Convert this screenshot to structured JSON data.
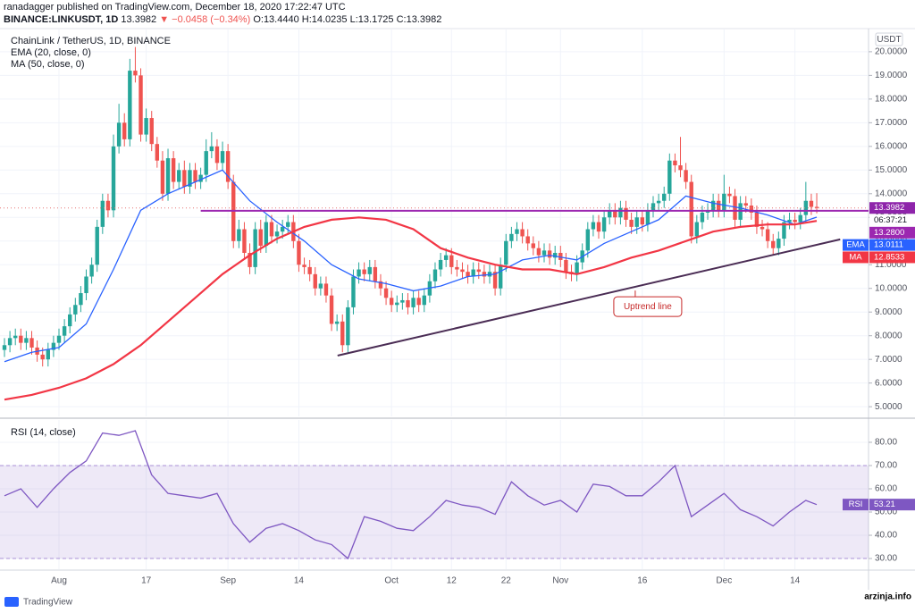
{
  "header": {
    "published": "ranadagger published on TradingView.com, December 18, 2020 17:22:47 UTC",
    "symbol": "BINANCE:LINKUSDT, 1D",
    "change": "▼ −0.0458 (−0.34%)",
    "ohlc_labels": [
      "O:",
      "H:",
      "L:",
      "C:"
    ]
  },
  "footer": {
    "brand": "TradingView",
    "watermark": "arzinja.info"
  },
  "chart_data": [
    {
      "type": "candlestick",
      "title": "ChainLink / TetherUS, 1D, BINANCE",
      "unit": "USDT",
      "countdown": "06:37:21",
      "up_color": "#26a69a",
      "down_color": "#ef5350",
      "xlim": [
        -0.82,
        158.5
      ],
      "ylim": [
        4.59,
        20.94
      ],
      "xticks": [
        {
          "value": 10,
          "label": "Aug"
        },
        {
          "value": 26,
          "label": "17"
        },
        {
          "value": 41,
          "label": "Sep"
        },
        {
          "value": 54,
          "label": "14"
        },
        {
          "value": 71,
          "label": "Oct"
        },
        {
          "value": 82,
          "label": "12"
        },
        {
          "value": 92,
          "label": "22"
        },
        {
          "value": 102,
          "label": "Nov"
        },
        {
          "value": 117,
          "label": "16"
        },
        {
          "value": 132,
          "label": "Dec"
        },
        {
          "value": 145,
          "label": "14"
        }
      ],
      "yticks": [
        {
          "value": 5,
          "label": "5.0000"
        },
        {
          "value": 6,
          "label": "6.0000"
        },
        {
          "value": 7,
          "label": "7.0000"
        },
        {
          "value": 8,
          "label": "8.0000"
        },
        {
          "value": 9,
          "label": "9.0000"
        },
        {
          "value": 10,
          "label": "10.0000"
        },
        {
          "value": 11,
          "label": "11.0000"
        },
        {
          "value": 12,
          "label": "12.0000"
        },
        {
          "value": 13,
          "label": "13.0000"
        },
        {
          "value": 14,
          "label": "14.0000"
        },
        {
          "value": 15,
          "label": "15.0000"
        },
        {
          "value": 16,
          "label": "16.0000"
        },
        {
          "value": 17,
          "label": "17.0000"
        },
        {
          "value": 18,
          "label": "18.0000"
        },
        {
          "value": 19,
          "label": "19.0000"
        },
        {
          "value": 20,
          "label": "20.0000"
        }
      ],
      "open": [
        7.4,
        7.6,
        7.9,
        8.0,
        7.7,
        7.9,
        7.5,
        7.2,
        7.0,
        7.4,
        7.7,
        8.0,
        8.4,
        8.9,
        9.3,
        9.8,
        10.5,
        11.0,
        12.6,
        13.7,
        13.3,
        16.0,
        17.0,
        16.3,
        19.2,
        19.0,
        16.5,
        17.2,
        16.1,
        15.4,
        14.0,
        15.5,
        14.5,
        15.0,
        14.3,
        15.0,
        14.5,
        14.8,
        15.8,
        16.0,
        15.3,
        15.8,
        14.5,
        12.0,
        12.5,
        11.5,
        10.9,
        12.5,
        11.8,
        12.8,
        12.2,
        12.4,
        12.6,
        12.8,
        12.0,
        11.0,
        10.9,
        10.6,
        10.0,
        10.2,
        9.7,
        8.5,
        8.6,
        7.6,
        9.2,
        10.5,
        10.8,
        10.6,
        10.9,
        10.3,
        10.0,
        9.6,
        9.3,
        9.4,
        9.5,
        9.2,
        9.6,
        9.3,
        9.7,
        10.3,
        10.8,
        11.2,
        11.4,
        10.9,
        10.8,
        10.7,
        10.5,
        10.8,
        10.7,
        10.5,
        10.7,
        10.0,
        11.0,
        12.0,
        12.3,
        12.5,
        12.2,
        11.9,
        11.7,
        11.4,
        11.6,
        11.3,
        11.5,
        11.2,
        10.7,
        10.6,
        11.1,
        11.6,
        12.5,
        12.8,
        12.4,
        13.0,
        13.3,
        13.0,
        13.4,
        12.9,
        12.6,
        13.0,
        12.7,
        13.3,
        13.6,
        13.7,
        14.0,
        15.4,
        15.2,
        15.0,
        14.5,
        12.2,
        12.8,
        13.2,
        13.3,
        13.7,
        13.3,
        14.0,
        13.9,
        12.9,
        13.6,
        13.5,
        13.2,
        12.6,
        12.5,
        12.0,
        11.7,
        12.1,
        12.8,
        12.9,
        12.8,
        13.1,
        13.7,
        13.444
      ],
      "high": [
        7.9,
        8.2,
        8.3,
        8.3,
        8.2,
        8.2,
        7.8,
        7.5,
        7.7,
        8.0,
        8.3,
        8.7,
        9.2,
        9.6,
        10.1,
        10.8,
        11.3,
        12.9,
        14.0,
        14.0,
        16.5,
        17.8,
        17.4,
        19.7,
        20.2,
        19.3,
        17.6,
        17.5,
        16.4,
        15.8,
        15.9,
        15.8,
        15.3,
        15.4,
        15.3,
        15.3,
        15.1,
        16.3,
        16.6,
        16.3,
        16.2,
        16.1,
        14.8,
        12.9,
        12.8,
        11.9,
        12.8,
        12.9,
        13.1,
        13.1,
        12.7,
        12.9,
        13.1,
        13.1,
        12.3,
        11.3,
        11.2,
        10.9,
        10.5,
        10.5,
        10.0,
        8.9,
        8.9,
        9.5,
        10.8,
        11.1,
        11.1,
        11.2,
        11.2,
        10.6,
        10.3,
        9.9,
        9.7,
        9.8,
        9.8,
        9.9,
        9.9,
        10.0,
        10.6,
        11.1,
        11.5,
        11.7,
        11.7,
        11.2,
        11.1,
        11.0,
        11.1,
        11.1,
        11.0,
        11.0,
        11.0,
        11.3,
        12.3,
        12.6,
        12.8,
        12.8,
        12.5,
        12.2,
        12.0,
        11.9,
        11.9,
        11.8,
        11.8,
        11.5,
        11.0,
        11.4,
        11.9,
        12.8,
        13.1,
        13.1,
        13.3,
        13.6,
        13.6,
        13.7,
        13.7,
        13.2,
        13.3,
        13.3,
        13.6,
        13.9,
        14.0,
        14.3,
        15.7,
        15.7,
        16.4,
        15.3,
        14.8,
        13.1,
        13.5,
        13.6,
        14.0,
        14.0,
        14.8,
        14.3,
        14.2,
        13.9,
        13.9,
        13.8,
        13.5,
        12.9,
        12.8,
        12.3,
        12.4,
        13.1,
        13.2,
        13.2,
        13.4,
        14.5,
        14.0,
        14.0235
      ],
      "low": [
        7.1,
        7.3,
        7.6,
        7.4,
        7.4,
        7.2,
        6.9,
        6.7,
        6.7,
        7.1,
        7.4,
        7.7,
        8.1,
        8.6,
        9.0,
        9.5,
        10.2,
        10.7,
        12.3,
        13.0,
        13.0,
        15.7,
        16.0,
        16.0,
        18.7,
        16.2,
        16.2,
        15.8,
        15.1,
        13.7,
        13.7,
        14.2,
        14.2,
        14.0,
        14.0,
        14.2,
        14.2,
        14.5,
        15.5,
        15.0,
        15.0,
        14.2,
        11.7,
        11.7,
        11.2,
        10.6,
        10.6,
        11.5,
        11.5,
        11.9,
        11.9,
        12.1,
        12.3,
        11.7,
        10.7,
        10.6,
        10.3,
        9.7,
        9.7,
        9.4,
        8.2,
        8.2,
        7.3,
        7.3,
        8.9,
        10.2,
        10.3,
        10.3,
        10.0,
        9.7,
        9.3,
        9.0,
        9.0,
        9.1,
        8.9,
        8.9,
        9.0,
        9.0,
        9.4,
        10.0,
        10.5,
        10.9,
        10.6,
        10.5,
        10.4,
        10.2,
        10.2,
        10.4,
        10.2,
        10.2,
        9.7,
        9.7,
        10.7,
        11.7,
        12.0,
        11.9,
        11.6,
        11.4,
        11.1,
        11.1,
        11.0,
        11.0,
        10.9,
        10.4,
        10.3,
        10.3,
        10.8,
        11.3,
        12.2,
        12.1,
        12.1,
        12.7,
        12.7,
        12.7,
        12.6,
        12.3,
        12.3,
        12.4,
        12.4,
        13.0,
        13.3,
        13.4,
        13.7,
        14.9,
        14.7,
        14.2,
        11.9,
        11.9,
        12.5,
        12.9,
        13.0,
        13.0,
        13.0,
        13.6,
        12.6,
        12.6,
        13.2,
        12.9,
        12.3,
        12.2,
        11.7,
        11.4,
        11.4,
        11.8,
        12.5,
        12.5,
        12.5,
        12.8,
        13.1,
        13.1725
      ],
      "close": [
        7.6,
        7.9,
        8.0,
        7.7,
        7.9,
        7.5,
        7.2,
        7.0,
        7.4,
        7.7,
        8.0,
        8.4,
        8.9,
        9.3,
        9.8,
        10.5,
        11.0,
        12.6,
        13.7,
        13.3,
        16.0,
        17.0,
        16.3,
        19.2,
        19.0,
        16.5,
        17.2,
        16.1,
        15.4,
        14.0,
        15.5,
        14.5,
        15.0,
        14.3,
        15.0,
        14.5,
        14.8,
        15.8,
        16.0,
        15.3,
        15.8,
        14.5,
        12.0,
        12.5,
        11.5,
        10.9,
        12.5,
        11.8,
        12.8,
        12.2,
        12.4,
        12.6,
        12.8,
        12.0,
        11.0,
        10.9,
        10.6,
        10.0,
        10.2,
        9.7,
        8.5,
        8.6,
        7.6,
        9.2,
        10.5,
        10.8,
        10.6,
        10.9,
        10.3,
        10.0,
        9.6,
        9.3,
        9.4,
        9.5,
        9.2,
        9.6,
        9.3,
        9.7,
        10.3,
        10.8,
        11.2,
        11.4,
        10.9,
        10.8,
        10.7,
        10.5,
        10.8,
        10.7,
        10.5,
        10.7,
        10.0,
        11.0,
        12.0,
        12.3,
        12.5,
        12.2,
        11.9,
        11.7,
        11.4,
        11.6,
        11.3,
        11.5,
        11.2,
        10.7,
        10.6,
        11.1,
        11.6,
        12.5,
        12.8,
        12.4,
        13.0,
        13.3,
        13.0,
        13.4,
        12.9,
        12.6,
        13.0,
        12.7,
        13.3,
        13.6,
        13.7,
        14.0,
        15.4,
        15.2,
        15.0,
        14.5,
        12.2,
        12.8,
        13.2,
        13.3,
        13.7,
        13.3,
        14.0,
        13.9,
        12.9,
        13.6,
        13.5,
        13.2,
        12.6,
        12.5,
        12.0,
        11.7,
        12.1,
        12.8,
        12.9,
        12.8,
        13.1,
        13.7,
        13.444,
        13.3982
      ],
      "value_labels": {
        "open": "13.4440"
      },
      "series": [
        {
          "name": "EMA (20, close, 0)",
          "tag": "EMA",
          "color": "#2962ff",
          "width": 1.3,
          "x": [
            0,
            5,
            10,
            15,
            20,
            25,
            30,
            35,
            40,
            45,
            50,
            55,
            60,
            65,
            70,
            75,
            80,
            85,
            90,
            95,
            100,
            105,
            110,
            115,
            120,
            125,
            130,
            135,
            140,
            145,
            149
          ],
          "values": [
            6.9,
            7.3,
            7.5,
            8.5,
            10.8,
            13.3,
            14.0,
            14.5,
            15.0,
            13.7,
            12.8,
            12.0,
            11.0,
            10.4,
            10.2,
            9.9,
            10.1,
            10.5,
            10.6,
            11.2,
            11.4,
            11.2,
            11.9,
            12.4,
            12.9,
            13.9,
            13.6,
            13.4,
            13.1,
            12.7,
            13.0111
          ]
        },
        {
          "name": "MA (50, close, 0)",
          "tag": "MA",
          "color": "#f23645",
          "width": 2.2,
          "x": [
            0,
            5,
            10,
            15,
            20,
            25,
            30,
            35,
            40,
            45,
            50,
            55,
            60,
            65,
            70,
            75,
            80,
            85,
            90,
            95,
            100,
            105,
            110,
            115,
            120,
            125,
            130,
            135,
            140,
            145,
            149
          ],
          "values": [
            5.3,
            5.5,
            5.8,
            6.2,
            6.8,
            7.6,
            8.6,
            9.6,
            10.6,
            11.4,
            12.1,
            12.6,
            12.9,
            13.0,
            12.9,
            12.5,
            11.7,
            11.3,
            11.0,
            10.8,
            10.8,
            10.6,
            10.9,
            11.3,
            11.6,
            12.0,
            12.4,
            12.6,
            12.7,
            12.7,
            12.8533
          ]
        }
      ],
      "hline": {
        "value": 13.28,
        "label": "13.2800",
        "start": 36,
        "color": "#9c27b0"
      },
      "trendline": {
        "x": [
          61.1,
          153.3
        ],
        "y": [
          7.16,
          12.07
        ],
        "color": "#4a2c54"
      },
      "annotations": [
        {
          "text": "Uptrend line",
          "x": 118,
          "y": 9.23,
          "color": "#c62828"
        }
      ]
    },
    {
      "type": "line",
      "title": "RSI (14, close)",
      "tag": "RSI",
      "color": "#7e57c2",
      "ylim": [
        25.4,
        89.6
      ],
      "band": [
        30,
        70
      ],
      "yticks": [
        {
          "value": 30,
          "label": "30.00"
        },
        {
          "value": 40,
          "label": "40.00"
        },
        {
          "value": 50,
          "label": "50.00"
        },
        {
          "value": 60,
          "label": "60.00"
        },
        {
          "value": 70,
          "label": "70.00"
        },
        {
          "value": 80,
          "label": "80.00"
        }
      ],
      "x": [
        0,
        3,
        6,
        9,
        12,
        15,
        18,
        21,
        24,
        27,
        30,
        33,
        36,
        39,
        42,
        45,
        48,
        51,
        54,
        57,
        60,
        63,
        66,
        69,
        72,
        75,
        78,
        81,
        84,
        87,
        90,
        93,
        96,
        99,
        102,
        105,
        108,
        111,
        114,
        117,
        120,
        123,
        126,
        129,
        132,
        135,
        138,
        141,
        144,
        147,
        149
      ],
      "values": [
        57,
        60,
        52,
        60,
        67,
        72,
        84,
        83,
        85,
        66,
        58,
        57,
        56,
        58,
        45,
        37,
        43,
        45,
        42,
        38,
        36,
        30,
        48,
        46,
        43,
        42,
        48,
        55,
        53,
        52,
        49,
        63,
        57,
        53,
        55,
        50,
        62,
        61,
        57,
        57,
        63,
        70,
        48,
        53,
        58,
        51,
        48,
        44,
        50,
        55,
        53.21
      ]
    }
  ]
}
